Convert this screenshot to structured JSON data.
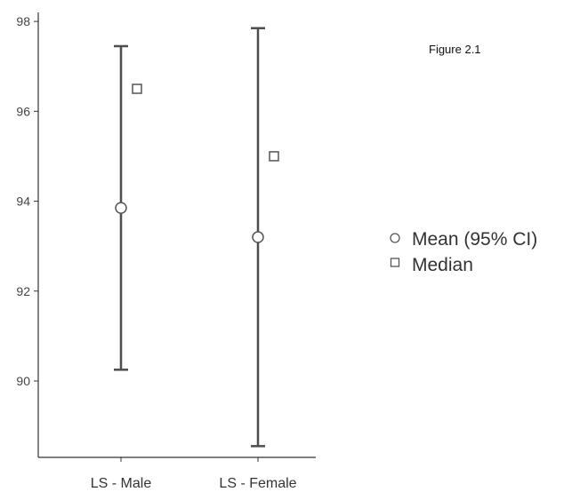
{
  "figure_label": "Figure 2.1",
  "chart_data": {
    "type": "errorbar",
    "categories": [
      "LS - Male",
      "LS - Female"
    ],
    "series": [
      {
        "name": "Mean (95% CI)",
        "marker": "circle",
        "values": [
          93.85,
          93.2
        ]
      },
      {
        "name": "Median",
        "marker": "square",
        "values": [
          96.5,
          95.0
        ]
      }
    ],
    "ci_lower": [
      90.25,
      88.55
    ],
    "ci_upper": [
      97.45,
      97.85
    ],
    "ylim": [
      88.3,
      98.2
    ],
    "yticks": [
      90,
      92,
      94,
      96,
      98
    ],
    "xlabel": "",
    "ylabel": "",
    "grid": false,
    "legend_position": "right",
    "colors": {
      "line": "#4d4d4d",
      "marker_stroke": "#555555",
      "marker_fill": "#ffffff",
      "axis": "#333333"
    }
  }
}
